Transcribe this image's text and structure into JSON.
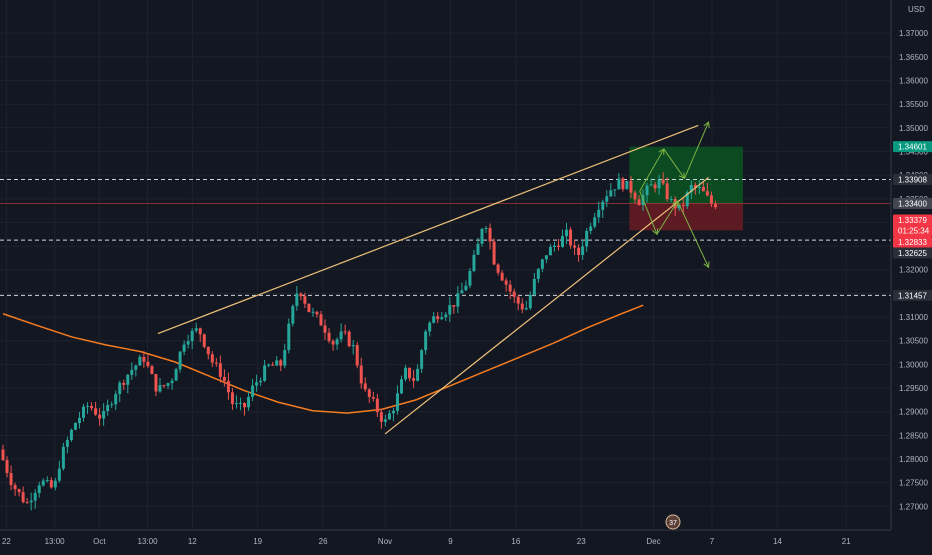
{
  "chart_data": {
    "type": "candlestick",
    "title": "",
    "currency": "USD",
    "y_axis": {
      "min": 1.265,
      "max": 1.377,
      "ticks": [
        1.37,
        1.365,
        1.36,
        1.355,
        1.35,
        1.345,
        1.34,
        1.335,
        1.33,
        1.325,
        1.32,
        1.315,
        1.31,
        1.305,
        1.3,
        1.295,
        1.29,
        1.285,
        1.28,
        1.275,
        1.27
      ],
      "tick_labels": [
        "1.37000",
        "1.36500",
        "1.36000",
        "1.35500",
        "1.35000",
        "1.34500",
        "1.34000",
        "1.33500",
        "1.33000",
        "1.32500",
        "1.32000",
        "1.31500",
        "1.31000",
        "1.30500",
        "1.30000",
        "1.29500",
        "1.29000",
        "1.28500",
        "1.28000",
        "1.27500",
        "1.27000"
      ]
    },
    "x_axis": {
      "tick_labels": [
        "22",
        "13:00",
        "Oct",
        "13:00",
        "12",
        "19",
        "26",
        "Nov",
        "9",
        "16",
        "23",
        "Dec",
        "7",
        "14",
        "21"
      ],
      "range_bars": [
        0,
        258
      ],
      "tick_bars": [
        1,
        15,
        28,
        42,
        55,
        74,
        93,
        111,
        130,
        149,
        168,
        189,
        206,
        225,
        245
      ]
    },
    "price_labels": [
      {
        "value": 1.34601,
        "label": "1.34601",
        "color": "#089981"
      },
      {
        "value": 1.33908,
        "label": "1.33908",
        "color": "#2a2e39"
      },
      {
        "value": 1.334,
        "label": "1.33400",
        "color": "#434651"
      },
      {
        "value": 1.33379,
        "label": "1.33379",
        "sublabel": "01:25:34",
        "color": "#f23645"
      },
      {
        "value": 1.32833,
        "label": "1.32833",
        "color": "#f23645"
      },
      {
        "value": 1.32625,
        "label": "1.32625",
        "color": "#2a2e39"
      },
      {
        "value": 1.31457,
        "label": "1.31457",
        "color": "#2a2e39"
      }
    ],
    "horizontal_levels": [
      1.33908,
      1.32625,
      1.31457
    ],
    "current_price_line": 1.334,
    "position_box": {
      "start_bar": 182,
      "end_bar": 215,
      "entry": 1.334,
      "target": 1.34601,
      "stop": 1.32833,
      "profit_color": "#0c4a22",
      "loss_color": "#5c1a22"
    },
    "trendlines": [
      {
        "from": {
          "bar": 45,
          "price": 1.3065
        },
        "to": {
          "bar": 202,
          "price": 1.3505
        },
        "color": "#f0c27a"
      },
      {
        "from": {
          "bar": 111,
          "price": 1.2853
        },
        "to": {
          "bar": 205,
          "price": 1.3395
        },
        "color": "#f0c27a"
      }
    ],
    "projection_arrows": [
      {
        "from": {
          "bar": 185,
          "price": 1.3366
        },
        "to": {
          "bar": 192,
          "price": 1.3455
        }
      },
      {
        "from": {
          "bar": 192,
          "price": 1.3455
        },
        "to": {
          "bar": 198,
          "price": 1.3393
        }
      },
      {
        "from": {
          "bar": 198,
          "price": 1.3393
        },
        "to": {
          "bar": 205,
          "price": 1.3512
        }
      },
      {
        "from": {
          "bar": 185,
          "price": 1.3366
        },
        "to": {
          "bar": 190,
          "price": 1.3275
        }
      },
      {
        "from": {
          "bar": 190,
          "price": 1.3275
        },
        "to": {
          "bar": 196,
          "price": 1.3345
        }
      },
      {
        "from": {
          "bar": 196,
          "price": 1.3345
        },
        "to": {
          "bar": 205,
          "price": 1.3205
        }
      }
    ],
    "moving_average": {
      "color": "#f57c1f",
      "points": [
        [
          0,
          1.3107
        ],
        [
          10,
          1.3082
        ],
        [
          20,
          1.3058
        ],
        [
          30,
          1.3041
        ],
        [
          40,
          1.3027
        ],
        [
          50,
          1.3005
        ],
        [
          60,
          1.2975
        ],
        [
          70,
          1.2945
        ],
        [
          80,
          1.292
        ],
        [
          90,
          1.2902
        ],
        [
          100,
          1.2897
        ],
        [
          110,
          1.2905
        ],
        [
          120,
          1.2925
        ],
        [
          130,
          1.2955
        ],
        [
          140,
          1.2985
        ],
        [
          150,
          1.3015
        ],
        [
          160,
          1.3045
        ],
        [
          170,
          1.3078
        ],
        [
          180,
          1.3108
        ],
        [
          186,
          1.3125
        ]
      ]
    },
    "candles": {
      "up_color": "#26a69a",
      "down_color": "#ef5350",
      "anchors": [
        [
          0,
          1.282
        ],
        [
          4,
          1.2745
        ],
        [
          8,
          1.2705
        ],
        [
          12,
          1.2755
        ],
        [
          16,
          1.2735
        ],
        [
          18,
          1.2805
        ],
        [
          22,
          1.2875
        ],
        [
          26,
          1.2915
        ],
        [
          30,
          1.2885
        ],
        [
          34,
          1.2945
        ],
        [
          38,
          1.2985
        ],
        [
          42,
          1.3015
        ],
        [
          46,
          1.2945
        ],
        [
          50,
          1.2965
        ],
        [
          54,
          1.3055
        ],
        [
          58,
          1.3075
        ],
        [
          62,
          1.3005
        ],
        [
          65,
          1.2975
        ],
        [
          68,
          1.2915
        ],
        [
          71,
          1.2905
        ],
        [
          74,
          1.2955
        ],
        [
          78,
          1.2995
        ],
        [
          82,
          1.3
        ],
        [
          85,
          1.3105
        ],
        [
          87,
          1.3165
        ],
        [
          90,
          1.3115
        ],
        [
          94,
          1.3085
        ],
        [
          97,
          1.3045
        ],
        [
          100,
          1.3065
        ],
        [
          103,
          1.3035
        ],
        [
          106,
          1.2945
        ],
        [
          109,
          1.2915
        ],
        [
          112,
          1.2875
        ],
        [
          115,
          1.2915
        ],
        [
          118,
          1.2985
        ],
        [
          121,
          1.2965
        ],
        [
          124,
          1.3075
        ],
        [
          127,
          1.3105
        ],
        [
          130,
          1.3115
        ],
        [
          133,
          1.3135
        ],
        [
          136,
          1.3175
        ],
        [
          139,
          1.3245
        ],
        [
          141,
          1.3315
        ],
        [
          144,
          1.3215
        ],
        [
          147,
          1.3175
        ],
        [
          150,
          1.3135
        ],
        [
          153,
          1.3115
        ],
        [
          156,
          1.3185
        ],
        [
          159,
          1.3235
        ],
        [
          162,
          1.3255
        ],
        [
          165,
          1.3275
        ],
        [
          168,
          1.3225
        ],
        [
          171,
          1.3285
        ],
        [
          174,
          1.3335
        ],
        [
          177,
          1.3365
        ],
        [
          180,
          1.3385
        ],
        [
          183,
          1.3375
        ],
        [
          186,
          1.3345
        ],
        [
          189,
          1.3375
        ],
        [
          192,
          1.3385
        ],
        [
          195,
          1.3345
        ],
        [
          198,
          1.3325
        ],
        [
          201,
          1.3375
        ],
        [
          204,
          1.3368
        ],
        [
          207,
          1.334
        ]
      ],
      "bars": 178,
      "seed": 7
    }
  }
}
